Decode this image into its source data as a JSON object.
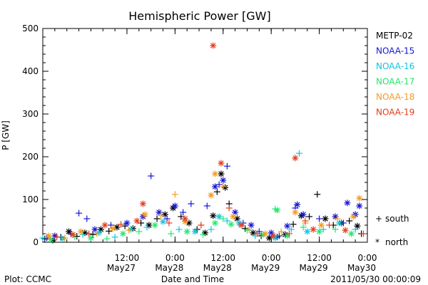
{
  "chart_data": {
    "type": "scatter",
    "title": "Hemispheric Power [GW]",
    "ylabel": "P [GW]",
    "xlabel": "Date and Time",
    "ylim": [
      0,
      500
    ],
    "y_ticks": [
      0,
      100,
      200,
      300,
      400,
      500
    ],
    "xlim": [
      "2011-05-26 15:00",
      "2011-05-30 00:00"
    ],
    "x_ticks": [
      {
        "time": "2011-05-27 12:00",
        "label": "12:00",
        "sublabel": "May27"
      },
      {
        "time": "2011-05-28 00:00",
        "label": "0:00",
        "sublabel": "May28"
      },
      {
        "time": "2011-05-28 12:00",
        "label": "12:00",
        "sublabel": "May28"
      },
      {
        "time": "2011-05-29 00:00",
        "label": "0:00",
        "sublabel": "May29"
      },
      {
        "time": "2011-05-29 12:00",
        "label": "12:00",
        "sublabel": "May29"
      },
      {
        "time": "2011-05-30 00:00",
        "label": "0:00",
        "sublabel": "May30"
      }
    ],
    "marker_legend": {
      "south": {
        "symbol": "+",
        "label": "south"
      },
      "north": {
        "symbol": "*",
        "label": "north"
      }
    },
    "series": [
      {
        "name": "METP-02",
        "color": "#000000",
        "points": [
          [
            "2011-05-26 15:30",
            8,
            "south"
          ],
          [
            "2011-05-26 17:30",
            5,
            "north"
          ],
          [
            "2011-05-26 19:30",
            12,
            "south"
          ],
          [
            "2011-05-26 21:30",
            25,
            "north"
          ],
          [
            "2011-05-26 23:30",
            14,
            "south"
          ],
          [
            "2011-05-27 01:30",
            22,
            "north"
          ],
          [
            "2011-05-27 03:30",
            18,
            "south"
          ],
          [
            "2011-05-27 05:30",
            30,
            "north"
          ],
          [
            "2011-05-27 07:30",
            26,
            "south"
          ],
          [
            "2011-05-27 09:30",
            35,
            "north"
          ],
          [
            "2011-05-27 11:30",
            38,
            "south"
          ],
          [
            "2011-05-27 13:30",
            32,
            "north"
          ],
          [
            "2011-05-27 15:30",
            45,
            "south"
          ],
          [
            "2011-05-27 17:30",
            40,
            "north"
          ],
          [
            "2011-05-27 19:30",
            55,
            "south"
          ],
          [
            "2011-05-27 21:30",
            65,
            "north"
          ],
          [
            "2011-05-27 23:30",
            80,
            "north"
          ],
          [
            "2011-05-28 01:30",
            60,
            "south"
          ],
          [
            "2011-05-28 03:30",
            45,
            "north"
          ],
          [
            "2011-05-28 05:30",
            30,
            "south"
          ],
          [
            "2011-05-28 07:30",
            22,
            "north"
          ],
          [
            "2011-05-28 09:30",
            62,
            "north"
          ],
          [
            "2011-05-28 10:30",
            118,
            "south"
          ],
          [
            "2011-05-28 11:30",
            160,
            "north"
          ],
          [
            "2011-05-28 12:30",
            128,
            "north"
          ],
          [
            "2011-05-28 13:30",
            90,
            "south"
          ],
          [
            "2011-05-28 15:30",
            55,
            "north"
          ],
          [
            "2011-05-28 17:30",
            32,
            "south"
          ],
          [
            "2011-05-28 19:30",
            22,
            "north"
          ],
          [
            "2011-05-28 21:30",
            15,
            "south"
          ],
          [
            "2011-05-28 23:30",
            10,
            "north"
          ],
          [
            "2011-05-29 01:30",
            12,
            "south"
          ],
          [
            "2011-05-29 03:30",
            18,
            "north"
          ],
          [
            "2011-05-29 05:30",
            42,
            "south"
          ],
          [
            "2011-05-29 07:30",
            62,
            "north"
          ],
          [
            "2011-05-29 09:30",
            60,
            "south"
          ],
          [
            "2011-05-29 11:30",
            112,
            "south"
          ],
          [
            "2011-05-29 13:30",
            55,
            "north"
          ],
          [
            "2011-05-29 15:30",
            40,
            "south"
          ],
          [
            "2011-05-29 17:30",
            45,
            "north"
          ],
          [
            "2011-05-29 19:30",
            50,
            "south"
          ],
          [
            "2011-05-29 21:30",
            38,
            "north"
          ],
          [
            "2011-05-29 22:30",
            20,
            "south"
          ]
        ]
      },
      {
        "name": "NOAA-15",
        "color": "#1515d6",
        "points": [
          [
            "2011-05-26 16:00",
            10,
            "south"
          ],
          [
            "2011-05-26 18:00",
            15,
            "north"
          ],
          [
            "2011-05-26 22:00",
            20,
            "south"
          ],
          [
            "2011-05-27 00:00",
            68,
            "south"
          ],
          [
            "2011-05-27 02:00",
            55,
            "south"
          ],
          [
            "2011-05-27 04:00",
            30,
            "north"
          ],
          [
            "2011-05-27 08:00",
            40,
            "south"
          ],
          [
            "2011-05-27 12:00",
            45,
            "north"
          ],
          [
            "2011-05-27 16:00",
            60,
            "north"
          ],
          [
            "2011-05-27 18:00",
            155,
            "south"
          ],
          [
            "2011-05-27 20:00",
            70,
            "north"
          ],
          [
            "2011-05-27 22:00",
            55,
            "south"
          ],
          [
            "2011-05-28 00:00",
            85,
            "north"
          ],
          [
            "2011-05-28 02:00",
            70,
            "south"
          ],
          [
            "2011-05-28 04:00",
            90,
            "south"
          ],
          [
            "2011-05-28 08:00",
            85,
            "south"
          ],
          [
            "2011-05-28 10:00",
            130,
            "north"
          ],
          [
            "2011-05-28 11:00",
            135,
            "south"
          ],
          [
            "2011-05-28 12:00",
            145,
            "north"
          ],
          [
            "2011-05-28 13:00",
            178,
            "south"
          ],
          [
            "2011-05-28 15:00",
            70,
            "north"
          ],
          [
            "2011-05-28 17:00",
            45,
            "south"
          ],
          [
            "2011-05-28 19:00",
            40,
            "north"
          ],
          [
            "2011-05-28 21:00",
            25,
            "south"
          ],
          [
            "2011-05-29 00:00",
            22,
            "north"
          ],
          [
            "2011-05-29 02:00",
            15,
            "south"
          ],
          [
            "2011-05-29 04:00",
            38,
            "north"
          ],
          [
            "2011-05-29 06:00",
            80,
            "south"
          ],
          [
            "2011-05-29 06:30",
            88,
            "north"
          ],
          [
            "2011-05-29 08:00",
            65,
            "north"
          ],
          [
            "2011-05-29 12:00",
            55,
            "south"
          ],
          [
            "2011-05-29 16:00",
            60,
            "north"
          ],
          [
            "2011-05-29 18:00",
            45,
            "south"
          ],
          [
            "2011-05-29 19:00",
            92,
            "north"
          ],
          [
            "2011-05-29 21:00",
            65,
            "north"
          ],
          [
            "2011-05-29 22:00",
            85,
            "north"
          ]
        ]
      },
      {
        "name": "NOAA-16",
        "color": "#11c4dd",
        "points": [
          [
            "2011-05-26 15:00",
            10,
            "south"
          ],
          [
            "2011-05-26 20:00",
            8,
            "north"
          ],
          [
            "2011-05-27 01:00",
            18,
            "south"
          ],
          [
            "2011-05-27 05:00",
            22,
            "north"
          ],
          [
            "2011-05-27 09:00",
            12,
            "south"
          ],
          [
            "2011-05-27 13:00",
            30,
            "north"
          ],
          [
            "2011-05-27 17:00",
            35,
            "south"
          ],
          [
            "2011-05-27 21:00",
            48,
            "north"
          ],
          [
            "2011-05-28 01:00",
            30,
            "south"
          ],
          [
            "2011-05-28 05:00",
            25,
            "north"
          ],
          [
            "2011-05-28 09:00",
            30,
            "south"
          ],
          [
            "2011-05-28 11:00",
            60,
            "north"
          ],
          [
            "2011-05-28 13:00",
            50,
            "south"
          ],
          [
            "2011-05-28 16:00",
            45,
            "north"
          ],
          [
            "2011-05-28 20:00",
            15,
            "south"
          ],
          [
            "2011-05-29 01:00",
            10,
            "north"
          ],
          [
            "2011-05-29 05:00",
            30,
            "south"
          ],
          [
            "2011-05-29 07:00",
            208,
            "south"
          ],
          [
            "2011-05-29 09:00",
            25,
            "north"
          ],
          [
            "2011-05-29 13:00",
            30,
            "south"
          ],
          [
            "2011-05-29 17:00",
            45,
            "north"
          ],
          [
            "2011-05-29 21:00",
            30,
            "south"
          ]
        ]
      },
      {
        "name": "NOAA-17",
        "color": "#22e66e",
        "points": [
          [
            "2011-05-26 17:00",
            6,
            "north"
          ],
          [
            "2011-05-26 23:00",
            12,
            "south"
          ],
          [
            "2011-05-27 03:00",
            10,
            "north"
          ],
          [
            "2011-05-27 07:00",
            8,
            "south"
          ],
          [
            "2011-05-27 11:00",
            20,
            "north"
          ],
          [
            "2011-05-27 15:00",
            25,
            "south"
          ],
          [
            "2011-05-27 19:00",
            40,
            "north"
          ],
          [
            "2011-05-27 23:00",
            20,
            "south"
          ],
          [
            "2011-05-28 03:00",
            25,
            "north"
          ],
          [
            "2011-05-28 07:00",
            18,
            "south"
          ],
          [
            "2011-05-28 10:00",
            45,
            "north"
          ],
          [
            "2011-05-28 12:00",
            55,
            "south"
          ],
          [
            "2011-05-28 14:00",
            42,
            "north"
          ],
          [
            "2011-05-28 18:00",
            28,
            "south"
          ],
          [
            "2011-05-28 22:00",
            18,
            "north"
          ],
          [
            "2011-05-29 01:00",
            78,
            "south"
          ],
          [
            "2011-05-29 01:30",
            75,
            "north"
          ],
          [
            "2011-05-29 04:00",
            15,
            "north"
          ],
          [
            "2011-05-29 08:00",
            35,
            "south"
          ],
          [
            "2011-05-29 12:00",
            25,
            "north"
          ],
          [
            "2011-05-29 16:00",
            30,
            "south"
          ],
          [
            "2011-05-29 20:00",
            20,
            "north"
          ]
        ]
      },
      {
        "name": "NOAA-18",
        "color": "#f59b1c",
        "points": [
          [
            "2011-05-26 16:30",
            15,
            "north"
          ],
          [
            "2011-05-26 20:30",
            10,
            "south"
          ],
          [
            "2011-05-27 00:30",
            25,
            "north"
          ],
          [
            "2011-05-27 04:30",
            20,
            "south"
          ],
          [
            "2011-05-27 08:30",
            32,
            "north"
          ],
          [
            "2011-05-27 12:30",
            28,
            "south"
          ],
          [
            "2011-05-27 16:30",
            65,
            "north"
          ],
          [
            "2011-05-27 20:30",
            62,
            "south"
          ],
          [
            "2011-05-28 00:00",
            112,
            "south"
          ],
          [
            "2011-05-28 02:30",
            48,
            "north"
          ],
          [
            "2011-05-28 06:30",
            40,
            "south"
          ],
          [
            "2011-05-28 09:00",
            110,
            "north"
          ],
          [
            "2011-05-28 10:00",
            160,
            "north"
          ],
          [
            "2011-05-28 12:00",
            130,
            "south"
          ],
          [
            "2011-05-28 14:30",
            60,
            "north"
          ],
          [
            "2011-05-28 18:30",
            30,
            "south"
          ],
          [
            "2011-05-28 22:30",
            20,
            "north"
          ],
          [
            "2011-05-29 02:30",
            25,
            "south"
          ],
          [
            "2011-05-29 06:00",
            70,
            "north"
          ],
          [
            "2011-05-29 08:30",
            45,
            "south"
          ],
          [
            "2011-05-29 12:30",
            40,
            "north"
          ],
          [
            "2011-05-29 16:30",
            55,
            "south"
          ],
          [
            "2011-05-29 20:30",
            60,
            "north"
          ],
          [
            "2011-05-29 22:00",
            103,
            "north"
          ]
        ]
      },
      {
        "name": "NOAA-19",
        "color": "#e33c1b",
        "points": [
          [
            "2011-05-26 18:30",
            12,
            "south"
          ],
          [
            "2011-05-26 22:30",
            18,
            "north"
          ],
          [
            "2011-05-27 02:30",
            20,
            "south"
          ],
          [
            "2011-05-27 06:30",
            40,
            "north"
          ],
          [
            "2011-05-27 10:30",
            42,
            "south"
          ],
          [
            "2011-05-27 14:30",
            50,
            "north"
          ],
          [
            "2011-05-27 16:00",
            90,
            "north"
          ],
          [
            "2011-05-27 22:30",
            45,
            "south"
          ],
          [
            "2011-05-28 02:30",
            55,
            "north"
          ],
          [
            "2011-05-28 06:30",
            40,
            "south"
          ],
          [
            "2011-05-28 09:30",
            460,
            "north"
          ],
          [
            "2011-05-28 11:30",
            185,
            "north"
          ],
          [
            "2011-05-28 13:30",
            80,
            "south"
          ],
          [
            "2011-05-28 16:30",
            40,
            "north"
          ],
          [
            "2011-05-28 20:30",
            20,
            "south"
          ],
          [
            "2011-05-29 00:30",
            15,
            "north"
          ],
          [
            "2011-05-29 04:30",
            20,
            "south"
          ],
          [
            "2011-05-29 06:00",
            197,
            "north"
          ],
          [
            "2011-05-29 08:30",
            50,
            "south"
          ],
          [
            "2011-05-29 10:30",
            30,
            "north"
          ],
          [
            "2011-05-29 14:30",
            40,
            "south"
          ],
          [
            "2011-05-29 18:30",
            28,
            "north"
          ],
          [
            "2011-05-29 23:00",
            20,
            "south"
          ]
        ]
      }
    ],
    "footer": {
      "left": "Plot: CCMC",
      "right": "2011/05/30 00:00:09"
    }
  }
}
